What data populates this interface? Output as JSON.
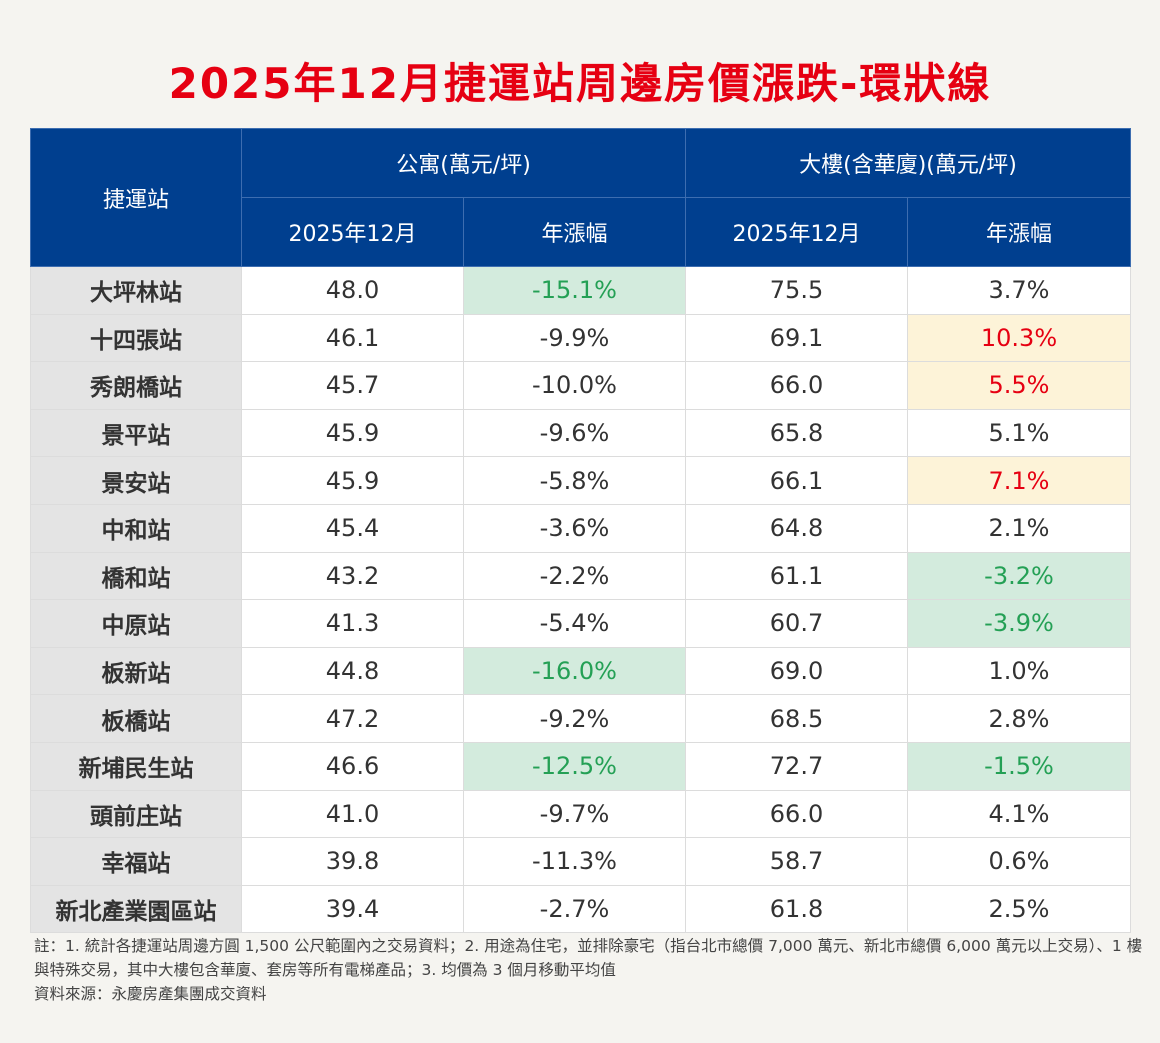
{
  "title": "2025年12月捷運站周邊房價漲跌-環狀線",
  "header": {
    "station": "捷運站",
    "apartment": "公寓(萬元/坪)",
    "building": "大樓(含華廈)(萬元/坪)",
    "month": "2025年12月",
    "change": "年漲幅"
  },
  "colors": {
    "header_bg": "#003f8f",
    "green_bg": "#d3ebdd",
    "green_text": "#24a055",
    "yellow_bg": "#fdf3d8",
    "red_text": "#e60012"
  },
  "rows": [
    {
      "station": "大坪林站",
      "apt_price": "48.0",
      "apt_change": "-15.1%",
      "apt_hl": "green",
      "bld_price": "75.5",
      "bld_change": "3.7%",
      "bld_hl": ""
    },
    {
      "station": "十四張站",
      "apt_price": "46.1",
      "apt_change": "-9.9%",
      "apt_hl": "",
      "bld_price": "69.1",
      "bld_change": "10.3%",
      "bld_hl": "yellow"
    },
    {
      "station": "秀朗橋站",
      "apt_price": "45.7",
      "apt_change": "-10.0%",
      "apt_hl": "",
      "bld_price": "66.0",
      "bld_change": "5.5%",
      "bld_hl": "yellow"
    },
    {
      "station": "景平站",
      "apt_price": "45.9",
      "apt_change": "-9.6%",
      "apt_hl": "",
      "bld_price": "65.8",
      "bld_change": "5.1%",
      "bld_hl": ""
    },
    {
      "station": "景安站",
      "apt_price": "45.9",
      "apt_change": "-5.8%",
      "apt_hl": "",
      "bld_price": "66.1",
      "bld_change": "7.1%",
      "bld_hl": "yellow"
    },
    {
      "station": "中和站",
      "apt_price": "45.4",
      "apt_change": "-3.6%",
      "apt_hl": "",
      "bld_price": "64.8",
      "bld_change": "2.1%",
      "bld_hl": ""
    },
    {
      "station": "橋和站",
      "apt_price": "43.2",
      "apt_change": "-2.2%",
      "apt_hl": "",
      "bld_price": "61.1",
      "bld_change": "-3.2%",
      "bld_hl": "green"
    },
    {
      "station": "中原站",
      "apt_price": "41.3",
      "apt_change": "-5.4%",
      "apt_hl": "",
      "bld_price": "60.7",
      "bld_change": "-3.9%",
      "bld_hl": "green"
    },
    {
      "station": "板新站",
      "apt_price": "44.8",
      "apt_change": "-16.0%",
      "apt_hl": "green",
      "bld_price": "69.0",
      "bld_change": "1.0%",
      "bld_hl": ""
    },
    {
      "station": "板橋站",
      "apt_price": "47.2",
      "apt_change": "-9.2%",
      "apt_hl": "",
      "bld_price": "68.5",
      "bld_change": "2.8%",
      "bld_hl": ""
    },
    {
      "station": "新埔民生站",
      "apt_price": "46.6",
      "apt_change": "-12.5%",
      "apt_hl": "green",
      "bld_price": "72.7",
      "bld_change": "-1.5%",
      "bld_hl": "green"
    },
    {
      "station": "頭前庄站",
      "apt_price": "41.0",
      "apt_change": "-9.7%",
      "apt_hl": "",
      "bld_price": "66.0",
      "bld_change": "4.1%",
      "bld_hl": ""
    },
    {
      "station": "幸福站",
      "apt_price": "39.8",
      "apt_change": "-11.3%",
      "apt_hl": "",
      "bld_price": "58.7",
      "bld_change": "0.6%",
      "bld_hl": ""
    },
    {
      "station": "新北產業園區站",
      "apt_price": "39.4",
      "apt_change": "-2.7%",
      "apt_hl": "",
      "bld_price": "61.8",
      "bld_change": "2.5%",
      "bld_hl": ""
    }
  ],
  "notes": [
    "註：1. 統計各捷運站周邊方圓 1,500 公尺範圍內之交易資料；2. 用途為住宅，並排除豪宅（指台北市總價 7,000 萬元、新北市總價 6,000 萬元以上交易）、1 樓與特殊交易，其中大樓包含華廈、套房等所有電梯產品；3. 均價為 3 個月移動平均值",
    "資料來源：永慶房產集團成交資料"
  ]
}
